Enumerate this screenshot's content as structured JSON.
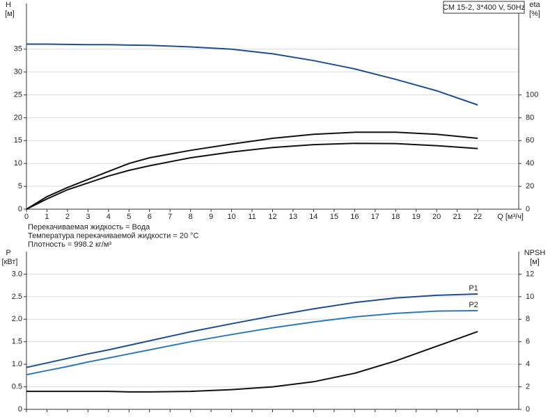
{
  "chart_data": [
    {
      "type": "line",
      "title": "CM 15-2, 3*400 V, 50Hz",
      "ylabel": "H",
      "yunit": "[м]",
      "y2label": "eta",
      "y2unit": "[%]",
      "xlabel": "Q [м³/ч]",
      "annotations": [
        "Перекачиваемая жидкость = Вода",
        "Температура перекачиваемой жидкости = 20 °C",
        "Плотность = 998.2 кг/м³"
      ],
      "x": [
        0,
        1,
        2,
        3,
        4,
        5,
        6,
        8,
        10,
        12,
        14,
        16,
        18,
        20,
        22
      ],
      "xlim": [
        0,
        24
      ],
      "xticks": [
        0,
        1,
        2,
        3,
        4,
        5,
        6,
        7,
        8,
        9,
        10,
        11,
        12,
        13,
        14,
        15,
        16,
        17,
        18,
        19,
        20,
        21,
        22
      ],
      "ylim": [
        0,
        45
      ],
      "yticks": [
        0,
        5,
        10,
        15,
        20,
        25,
        30,
        35
      ],
      "y2lim": [
        0,
        180
      ],
      "y2ticks": [
        0,
        20,
        40,
        60,
        80,
        100
      ],
      "grid": true,
      "series": [
        {
          "color": "#1f4e8c",
          "values": [
            36.1,
            36.1,
            36.05,
            36,
            36,
            35.9,
            35.85,
            35.5,
            35.0,
            34.0,
            32.5,
            30.7,
            28.4,
            25.9,
            22.8
          ]
        },
        {
          "color": "#111111",
          "axis": "y2",
          "values": [
            0,
            11,
            19,
            26,
            33,
            40,
            45,
            51.5,
            57,
            62,
            65.5,
            67.3,
            67.4,
            65.5,
            62
          ]
        },
        {
          "color": "#111111",
          "axis": "y2",
          "values": [
            0,
            9,
            17,
            23,
            29,
            34,
            38,
            45,
            50,
            54,
            56.5,
            57.6,
            57.4,
            55.6,
            53
          ]
        }
      ]
    },
    {
      "type": "line",
      "ylabel": "P",
      "yunit": "[кВт]",
      "y2label": "NPSH",
      "y2unit": "[м]",
      "x": [
        0,
        1,
        2,
        3,
        4,
        5,
        6,
        8,
        10,
        12,
        14,
        16,
        18,
        20,
        22
      ],
      "xlim": [
        0,
        24
      ],
      "ylim": [
        0,
        3.5
      ],
      "yticks": [
        0,
        0.5,
        {
          "value": 1,
          "label": "1.0"
        },
        1.5,
        {
          "value": 2,
          "label": "2.0"
        },
        2.5,
        {
          "value": 3,
          "label": "3.0"
        }
      ],
      "y2lim": [
        0,
        14
      ],
      "y2ticks": [
        0,
        2,
        4,
        6,
        8,
        10,
        12
      ],
      "grid": true,
      "series": [
        {
          "name": "P1",
          "color": "#1f4e8c",
          "values": [
            0.93,
            1.03,
            1.13,
            1.23,
            1.32,
            1.42,
            1.52,
            1.72,
            1.9,
            2.07,
            2.23,
            2.37,
            2.47,
            2.53,
            2.56
          ]
        },
        {
          "name": "P2",
          "color": "#2f78b4",
          "values": [
            0.77,
            0.86,
            0.95,
            1.05,
            1.14,
            1.23,
            1.32,
            1.5,
            1.66,
            1.81,
            1.94,
            2.05,
            2.13,
            2.18,
            2.19
          ]
        },
        {
          "color": "#111111",
          "axis": "y2",
          "values": [
            1.6,
            1.6,
            1.6,
            1.6,
            1.6,
            1.55,
            1.55,
            1.6,
            1.75,
            2.0,
            2.45,
            3.2,
            4.3,
            5.6,
            6.9
          ]
        }
      ]
    }
  ]
}
